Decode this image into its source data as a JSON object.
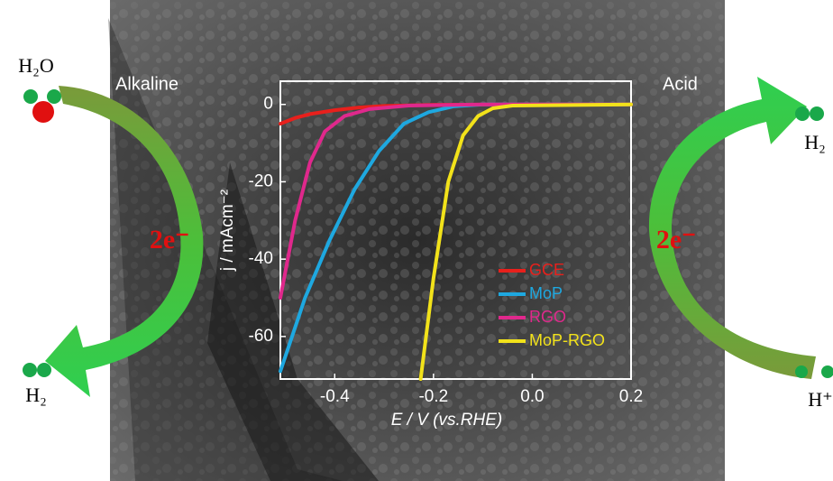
{
  "chart_data": {
    "type": "line",
    "xlabel": "E / V (vs.RHE)",
    "ylabel": "j / mAcm⁻²",
    "xlim": [
      -0.51,
      0.2
    ],
    "ylim": [
      -71,
      6
    ],
    "xticks": [
      -0.4,
      -0.2,
      {
        "value": 0,
        "label": "0.0"
      },
      0.2
    ],
    "yticks": [
      0,
      -20,
      -40,
      -60
    ],
    "legend": "lower right",
    "series": [
      {
        "name": "GCE",
        "color": "#e8201c",
        "x": [
          -0.51,
          -0.48,
          -0.45,
          -0.4,
          -0.35,
          -0.3,
          -0.2,
          0,
          0.2
        ],
        "values": [
          -5,
          -3.5,
          -2.5,
          -1.5,
          -0.8,
          -0.4,
          -0.1,
          0,
          0
        ]
      },
      {
        "name": "MoP",
        "color": "#1ea8e0",
        "x": [
          -0.51,
          -0.46,
          -0.41,
          -0.36,
          -0.31,
          -0.26,
          -0.21,
          -0.16,
          -0.1,
          0.2
        ],
        "values": [
          -69,
          -50,
          -35,
          -22,
          -12,
          -5,
          -2,
          -0.5,
          0,
          0
        ]
      },
      {
        "name": "RGO",
        "color": "#e0288c",
        "x": [
          -0.51,
          -0.48,
          -0.45,
          -0.42,
          -0.38,
          -0.33,
          -0.25,
          -0.1,
          0.2
        ],
        "values": [
          -50,
          -30,
          -15,
          -7,
          -3,
          -1.2,
          -0.3,
          0,
          0
        ]
      },
      {
        "name": "MoP-RGO",
        "color": "#f2e21a",
        "x": [
          -0.226,
          -0.2,
          -0.17,
          -0.14,
          -0.11,
          -0.08,
          -0.04,
          0.2
        ],
        "values": [
          -71,
          -45,
          -20,
          -8,
          -3,
          -1,
          -0.3,
          0
        ]
      }
    ],
    "annotations": [
      "Alkaline",
      "Acid",
      "2e⁻",
      "2e⁻",
      "H₂O",
      "H₂",
      "H₂",
      "H⁺"
    ]
  }
}
